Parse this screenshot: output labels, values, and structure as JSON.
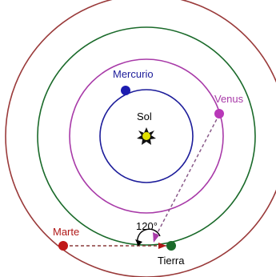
{
  "labels": {
    "sun": "Sol",
    "mercury": "Mercurio",
    "venus": "Venus",
    "earth": "Tierra",
    "mars": "Marte",
    "angle": "120°"
  },
  "colors": {
    "mercury": "#1c1c9a",
    "venus": "#a83aa8",
    "earth": "#1a6a2a",
    "mars": "#b01818",
    "sun": "#d8d800",
    "arrow": "#a83aa8",
    "dashed": "#7a7a7a",
    "text_default": "#000000"
  },
  "icons": {
    "sun": "sun-icon"
  }
}
